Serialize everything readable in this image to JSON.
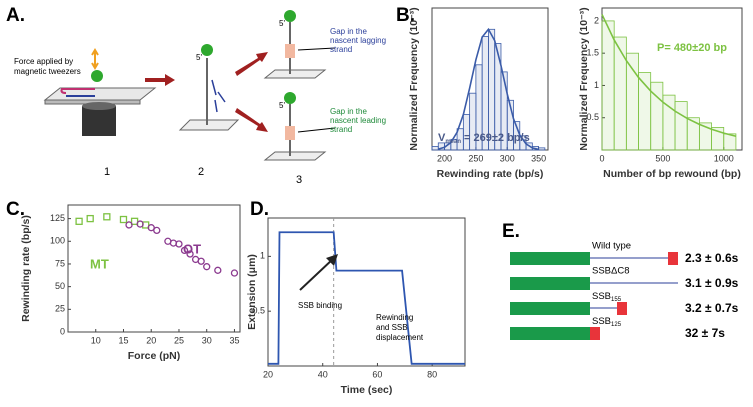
{
  "panel_letters": [
    "A.",
    "B.",
    "C.",
    "D.",
    "E."
  ],
  "diagram_a": {
    "force_label": [
      "Force applied by",
      "magnetic tweezers"
    ],
    "step_labels": [
      "1",
      "2",
      "3"
    ],
    "five_prime": "5'",
    "lagging_label": [
      "Gap in the",
      "nascent lagging",
      "strand"
    ],
    "leading_label": [
      "Gap in the",
      "nascent leading",
      "strand"
    ]
  },
  "chart_data": [
    {
      "type": "histogram",
      "xlabel": "Rewinding rate (bp/s)",
      "ylabel": "Normalized Frequency (10⁻³)",
      "color": "#3a5ba8",
      "bins": [
        180,
        190,
        200,
        210,
        220,
        230,
        240,
        250,
        260,
        270,
        280,
        290,
        300,
        310,
        320,
        330,
        340,
        350,
        360
      ],
      "values": [
        0.5,
        1,
        1,
        1.5,
        3,
        5,
        8,
        12,
        16,
        17,
        15,
        11,
        7,
        4,
        2,
        1,
        0.5,
        0.3
      ],
      "fit": {
        "x": [
          190,
          200,
          210,
          220,
          230,
          240,
          250,
          260,
          270,
          280,
          290,
          300,
          310,
          320,
          330,
          340,
          350
        ],
        "y": [
          0.12,
          0.38,
          1.05,
          2.5,
          5.0,
          8.7,
          12.7,
          15.9,
          17.0,
          15.4,
          11.9,
          7.9,
          4.4,
          2.1,
          0.86,
          0.3,
          0.09
        ]
      },
      "annotation": {
        "text": "V",
        "sub": "mean",
        "rest": "= 269±2 bp/s"
      },
      "xlim": [
        180,
        365
      ],
      "xticks": [
        200,
        250,
        300,
        350
      ],
      "ylim": [
        0,
        20
      ]
    },
    {
      "type": "histogram",
      "xlabel": "Number of bp rewound (bp)",
      "ylabel": "Normalized Frequency (10⁻³)",
      "color": "#7dc242",
      "bins": [
        0,
        100,
        200,
        300,
        400,
        500,
        600,
        700,
        800,
        900,
        1000,
        1100
      ],
      "values": [
        2.0,
        1.75,
        1.5,
        1.2,
        1.05,
        0.85,
        0.75,
        0.5,
        0.42,
        0.35,
        0.25
      ],
      "fit": {
        "x": [
          0,
          100,
          200,
          300,
          400,
          500,
          600,
          700,
          800,
          900,
          1000,
          1100
        ],
        "y": [
          2.1,
          1.705,
          1.385,
          1.124,
          0.913,
          0.741,
          0.602,
          0.489,
          0.397,
          0.322,
          0.262,
          0.213
        ]
      },
      "annotation": {
        "text": "P= 480±20 bp"
      },
      "xlim": [
        0,
        1150
      ],
      "xticks": [
        0,
        500,
        1000
      ],
      "ylim": [
        0,
        2.2
      ],
      "yticks": [
        0.5,
        1,
        1.5,
        2
      ]
    },
    {
      "type": "scatter",
      "xlabel": "Force (pN)",
      "ylabel": "Rewinding rate (bp/s)",
      "series": [
        {
          "name": "MT",
          "color": "#7dc242",
          "x": [
            7,
            9,
            12,
            15,
            17,
            19
          ],
          "values": [
            122,
            125,
            127,
            124,
            122,
            118
          ]
        },
        {
          "name": "OT",
          "color": "#8b3a8f",
          "x": [
            16,
            18,
            20,
            21,
            23,
            24,
            25,
            26,
            27,
            28,
            29,
            30,
            32,
            35
          ],
          "values": [
            118,
            119,
            115,
            112,
            100,
            98,
            97,
            90,
            86,
            80,
            78,
            72,
            68,
            65
          ]
        }
      ],
      "xlim": [
        5,
        36
      ],
      "xticks": [
        10,
        15,
        20,
        25,
        30,
        35
      ],
      "ylim": [
        0,
        140
      ],
      "yticks": [
        0,
        25,
        50,
        75,
        100,
        125
      ]
    },
    {
      "type": "line",
      "xlabel": "Time (sec)",
      "ylabel": "Extension (μm)",
      "color": "#2e56b0",
      "x": [
        20,
        23.8,
        24.2,
        44,
        45,
        69,
        72.5,
        92
      ],
      "values": [
        0.02,
        0.02,
        1.22,
        1.22,
        0.87,
        0.87,
        0.02,
        0.02
      ],
      "annotations": [
        [
          "SSB binding"
        ],
        [
          "Rewinding",
          "and SSB",
          "displacement"
        ]
      ],
      "xlim": [
        20,
        92
      ],
      "xticks": [
        20,
        40,
        60,
        80
      ],
      "ylim": [
        0,
        1.35
      ],
      "yticks": [
        0.5,
        1
      ]
    }
  ],
  "diagram_e": {
    "rows": [
      {
        "label": "Wild type",
        "time": "2.3 ± 0.6s"
      },
      {
        "label": "SSBΔC8",
        "time": "3.1 ± 0.9s"
      },
      {
        "label": "SSB",
        "subscript": "155",
        "time": "3.2 ± 0.7s"
      },
      {
        "label": "SSB",
        "subscript": "125",
        "time": "32 ± 7s"
      }
    ]
  }
}
